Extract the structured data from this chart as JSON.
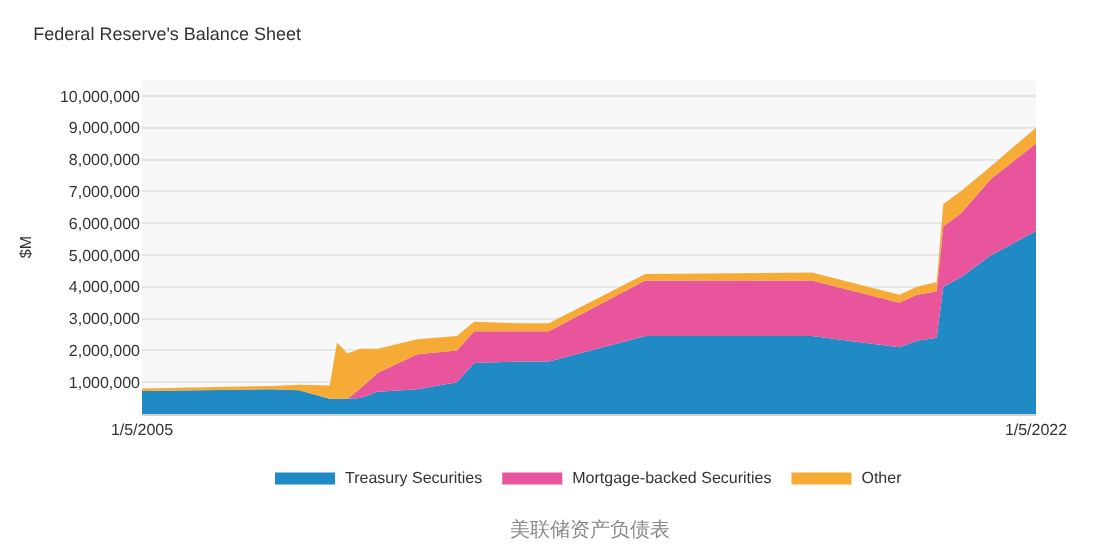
{
  "chart_data": {
    "type": "area",
    "stacked": true,
    "title": "Federal Reserve's Balance Sheet",
    "ylabel": "$M",
    "x": [
      "2005-01-05",
      "2007-07-01",
      "2008-01-01",
      "2008-08-01",
      "2008-09-20",
      "2008-12-01",
      "2009-03-01",
      "2009-07-01",
      "2010-04-01",
      "2011-01-01",
      "2011-05-01",
      "2012-03-01",
      "2012-10-01",
      "2014-08-01",
      "2017-10-01",
      "2019-06-01",
      "2019-10-01",
      "2020-02-15",
      "2020-04-01",
      "2020-08-01",
      "2021-03-01",
      "2022-01-05"
    ],
    "series": [
      {
        "name": "Treasury Securities",
        "color": "#1f8ac4",
        "values": [
          720000,
          780000,
          750000,
          480000,
          480000,
          480000,
          500000,
          700000,
          780000,
          1000000,
          1600000,
          1650000,
          1650000,
          2450000,
          2450000,
          2100000,
          2300000,
          2400000,
          4000000,
          4300000,
          5000000,
          5750000
        ]
      },
      {
        "name": "Mortgage-backed Securities",
        "color": "#e8559c",
        "values": [
          0,
          0,
          0,
          0,
          0,
          0,
          300000,
          600000,
          1100000,
          1000000,
          1000000,
          950000,
          950000,
          1750000,
          1750000,
          1400000,
          1450000,
          1450000,
          1900000,
          2000000,
          2400000,
          2750000
        ]
      },
      {
        "name": "Other",
        "color": "#f5ab35",
        "values": [
          80000,
          100000,
          170000,
          420000,
          1770000,
          1420000,
          1250000,
          750000,
          470000,
          450000,
          300000,
          250000,
          250000,
          200000,
          250000,
          250000,
          250000,
          300000,
          700000,
          700000,
          400000,
          500000
        ]
      }
    ],
    "xlim": [
      "2005-01-05",
      "2022-01-05"
    ],
    "xticks": [
      {
        "value": "2005-01-05",
        "label": "1/5/2005"
      },
      {
        "value": "2022-01-05",
        "label": "1/5/2022"
      }
    ],
    "ylim": [
      0,
      10500000
    ],
    "yticks": [
      {
        "value": 1000000,
        "label": "1,000,000"
      },
      {
        "value": 2000000,
        "label": "2,000,000"
      },
      {
        "value": 3000000,
        "label": "3,000,000"
      },
      {
        "value": 4000000,
        "label": "4,000,000"
      },
      {
        "value": 5000000,
        "label": "5,000,000"
      },
      {
        "value": 6000000,
        "label": "6,000,000"
      },
      {
        "value": 7000000,
        "label": "7,000,000"
      },
      {
        "value": 8000000,
        "label": "8,000,000"
      },
      {
        "value": 9000000,
        "label": "9,000,000"
      },
      {
        "value": 10000000,
        "label": "10,000,000"
      }
    ],
    "grid": "y",
    "legend": "bottom",
    "annotations": [
      "美联储资产负债表"
    ]
  }
}
